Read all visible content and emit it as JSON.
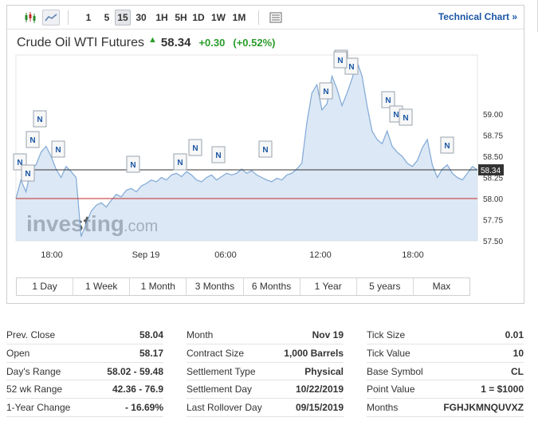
{
  "toolbar": {
    "icons": [
      "candlestick-icon",
      "area-chart-icon",
      "table-view-icon"
    ],
    "periods": [
      "1",
      "5",
      "15",
      "30",
      "1H",
      "5H",
      "1D",
      "1W",
      "1M"
    ],
    "selected_period": "15",
    "technical_link": "Technical Chart »"
  },
  "instrument": {
    "name": "Crude Oil WTI Futures",
    "price": "58.34",
    "change": "+0.30",
    "change_pct": "(+0.52%)"
  },
  "watermark": {
    "brand": "investing",
    "suffix": ".com"
  },
  "chart_data": {
    "type": "area",
    "x_tick_labels": [
      "18:00",
      "Sep 19",
      "06:00",
      "12:00",
      "18:00"
    ],
    "y_tick_labels": [
      "59.00",
      "58.75",
      "58.50",
      "58.25",
      "58.00",
      "57.75",
      "57.50"
    ],
    "ylim": [
      57.5,
      59.7
    ],
    "current_price_label": "58.34",
    "reference_line": 58.0,
    "news_marker_label": "N",
    "news_marker_count": 18,
    "values": [
      58.0,
      58.22,
      58.08,
      58.35,
      58.4,
      58.55,
      58.62,
      58.5,
      58.35,
      58.25,
      58.38,
      58.32,
      58.25,
      57.55,
      57.7,
      57.85,
      57.92,
      57.95,
      57.9,
      57.98,
      58.05,
      58.02,
      58.1,
      58.12,
      58.08,
      58.15,
      58.18,
      58.22,
      58.2,
      58.25,
      58.22,
      58.28,
      58.3,
      58.26,
      58.32,
      58.28,
      58.22,
      58.2,
      58.25,
      58.28,
      58.22,
      58.26,
      58.3,
      58.28,
      58.3,
      58.35,
      58.3,
      58.33,
      58.28,
      58.25,
      58.22,
      58.2,
      58.24,
      58.22,
      58.28,
      58.3,
      58.35,
      58.42,
      58.9,
      59.25,
      59.35,
      59.05,
      59.12,
      59.45,
      59.3,
      59.1,
      59.25,
      59.42,
      59.62,
      59.45,
      59.1,
      58.8,
      58.7,
      58.65,
      58.8,
      58.62,
      58.55,
      58.5,
      58.42,
      58.38,
      58.45,
      58.6,
      58.7,
      58.4,
      58.25,
      58.35,
      58.4,
      58.3,
      58.25,
      58.22,
      58.3,
      58.38,
      58.34
    ]
  },
  "range_buttons": [
    "1 Day",
    "1 Week",
    "1 Month",
    "3 Months",
    "6 Months",
    "1 Year",
    "5 years",
    "Max"
  ],
  "stats": {
    "col1": [
      {
        "label": "Prev. Close",
        "value": "58.04"
      },
      {
        "label": "Open",
        "value": "58.17"
      },
      {
        "label": "Day's Range",
        "value": "58.02 - 59.48"
      },
      {
        "label": "52 wk Range",
        "value": "42.36 - 76.9"
      },
      {
        "label": "1-Year Change",
        "value": "- 16.69%"
      }
    ],
    "col2": [
      {
        "label": "Month",
        "value": "Nov 19"
      },
      {
        "label": "Contract Size",
        "value": "1,000 Barrels"
      },
      {
        "label": "Settlement Type",
        "value": "Physical"
      },
      {
        "label": "Settlement Day",
        "value": "10/22/2019"
      },
      {
        "label": "Last Rollover Day",
        "value": "09/15/2019"
      }
    ],
    "col3": [
      {
        "label": "Tick Size",
        "value": "0.01"
      },
      {
        "label": "Tick Value",
        "value": "10"
      },
      {
        "label": "Base Symbol",
        "value": "CL"
      },
      {
        "label": "Point Value",
        "value": "1 = $1000"
      },
      {
        "label": "Months",
        "value": "FGHJKMNQUVXZ"
      }
    ]
  }
}
